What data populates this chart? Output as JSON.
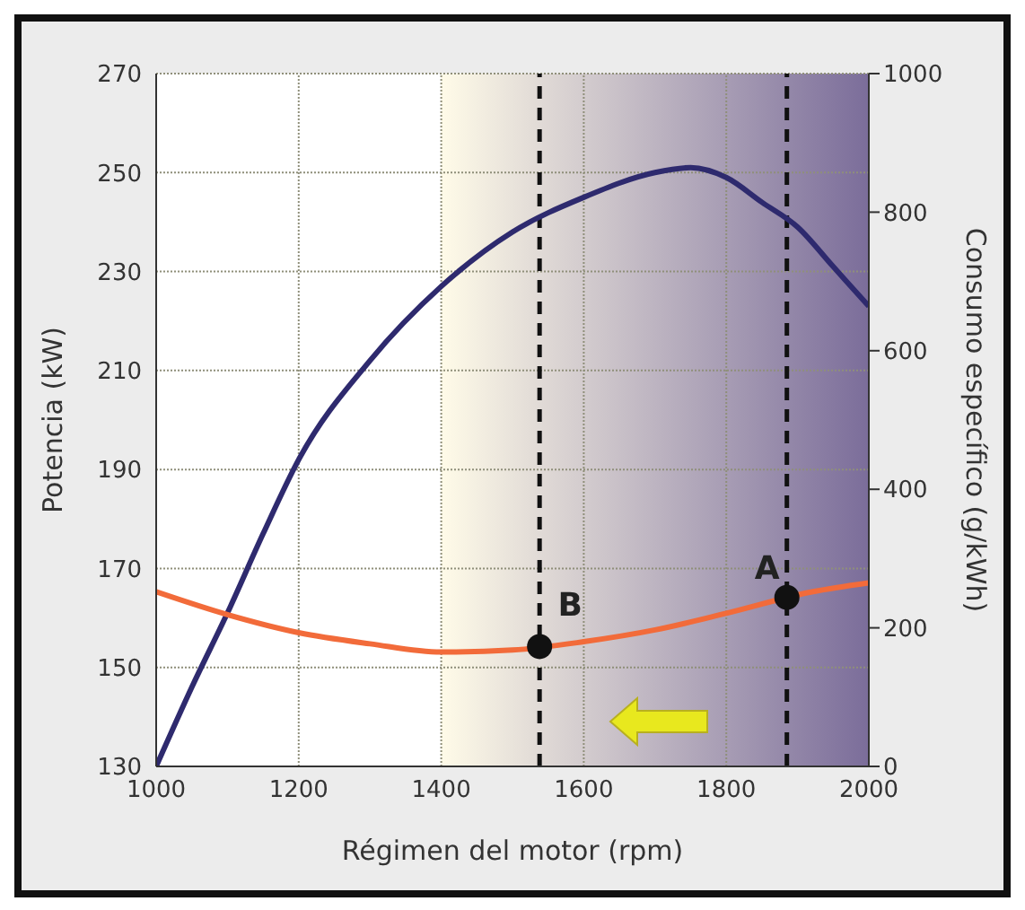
{
  "chart_data": {
    "type": "line",
    "xlabel": "Régimen del motor (rpm)",
    "ylabel": "Potencia (kW)",
    "y2label": "Consumo específico (g/kWh)",
    "series": [
      {
        "color": "#2e2a6e",
        "x": [
          1000,
          1050,
          1100,
          1150,
          1200,
          1300,
          1400,
          1500,
          1600,
          1700,
          1750,
          1800,
          1850,
          1900,
          1950,
          2000
        ],
        "values": [
          130,
          146,
          161,
          177,
          192,
          212,
          227,
          238,
          245,
          250,
          251,
          249,
          244,
          239,
          231,
          223
        ]
      },
      {
        "axis": "y2",
        "color": "#f26b3a",
        "x": [
          1000,
          1100,
          1200,
          1300,
          1400,
          1500,
          1600,
          1700,
          1800,
          1920,
          2000
        ],
        "values": [
          252,
          219,
          193,
          177,
          165,
          168,
          180,
          197,
          221,
          252,
          265
        ]
      },
      {
        "type": "scatter",
        "axis": "y2",
        "color": "#111111",
        "marker": "circle",
        "x": [
          1538,
          1885
        ],
        "values": [
          173,
          244
        ]
      }
    ],
    "xlim": [
      1000,
      2000
    ],
    "xticks": [
      1000,
      1200,
      1400,
      1600,
      1800,
      2000
    ],
    "ylim": [
      130,
      270
    ],
    "yticks": [
      130,
      150,
      170,
      190,
      210,
      230,
      250,
      270
    ],
    "y2lim": [
      0,
      1000
    ],
    "y2ticks": [
      0,
      200,
      400,
      600,
      800,
      1000
    ],
    "ref_lines": [
      {
        "axis": "x",
        "value": 1538,
        "color": "#111111",
        "line_style": "dashed"
      },
      {
        "axis": "x",
        "value": 1885,
        "color": "#111111",
        "line_style": "dashed"
      }
    ],
    "bands": [
      {
        "axis": "x",
        "from": 1400,
        "to": 2000,
        "color": "#7b6d9a"
      }
    ],
    "annotations": [
      {
        "text": "B",
        "x": 1538,
        "y": 154
      },
      {
        "text": "A",
        "x": 1885,
        "y": 164
      }
    ],
    "grid": true
  }
}
